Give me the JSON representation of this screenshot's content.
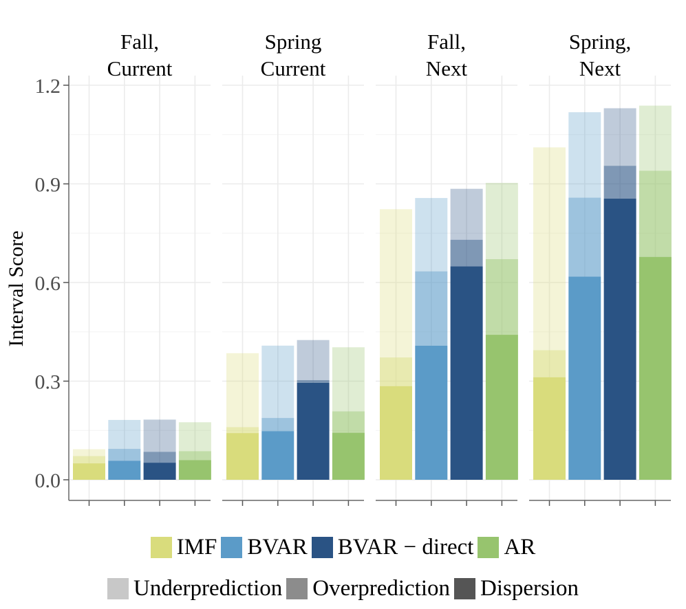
{
  "chart_data": {
    "type": "bar",
    "stacked": true,
    "ylabel": "Interval Score",
    "ylim": [
      0,
      1.2
    ],
    "yticks": [
      "0.0",
      "0.3",
      "0.6",
      "0.9",
      "1.2"
    ],
    "ytick_values": [
      0,
      0.3,
      0.6,
      0.9,
      1.2
    ],
    "grid": true,
    "facets": [
      {
        "title_line1": "Fall,",
        "title_line2": "Current"
      },
      {
        "title_line1": "Spring",
        "title_line2": "Current"
      },
      {
        "title_line1": "Fall,",
        "title_line2": "Next"
      },
      {
        "title_line1": "Spring,",
        "title_line2": "Next"
      }
    ],
    "models": [
      {
        "name": "IMF",
        "color": "#d9dc7c"
      },
      {
        "name": "BVAR",
        "color": "#5b9bc8"
      },
      {
        "name": "BVAR − direct",
        "color": "#2a5384"
      },
      {
        "name": "AR",
        "color": "#97c46e"
      }
    ],
    "components": [
      {
        "name": "Underprediction",
        "legend_color": "#c8c8c8",
        "opacity": 0.3
      },
      {
        "name": "Overprediction",
        "legend_color": "#8c8c8c",
        "opacity": 0.6
      },
      {
        "name": "Dispersion",
        "legend_color": "#555555",
        "opacity": 1.0
      }
    ],
    "values": [
      [
        {
          "dispersion": 0.05,
          "overprediction": 0.022,
          "underprediction": 0.021
        },
        {
          "dispersion": 0.058,
          "overprediction": 0.036,
          "underprediction": 0.088
        },
        {
          "dispersion": 0.052,
          "overprediction": 0.033,
          "underprediction": 0.098
        },
        {
          "dispersion": 0.06,
          "overprediction": 0.027,
          "underprediction": 0.088
        }
      ],
      [
        {
          "dispersion": 0.142,
          "overprediction": 0.018,
          "underprediction": 0.225
        },
        {
          "dispersion": 0.148,
          "overprediction": 0.04,
          "underprediction": 0.22
        },
        {
          "dispersion": 0.295,
          "overprediction": 0.008,
          "underprediction": 0.122
        },
        {
          "dispersion": 0.143,
          "overprediction": 0.065,
          "underprediction": 0.195
        }
      ],
      [
        {
          "dispersion": 0.285,
          "overprediction": 0.087,
          "underprediction": 0.451
        },
        {
          "dispersion": 0.408,
          "overprediction": 0.226,
          "underprediction": 0.223
        },
        {
          "dispersion": 0.649,
          "overprediction": 0.081,
          "underprediction": 0.155
        },
        {
          "dispersion": 0.441,
          "overprediction": 0.23,
          "underprediction": 0.232
        }
      ],
      [
        {
          "dispersion": 0.312,
          "overprediction": 0.082,
          "underprediction": 0.617
        },
        {
          "dispersion": 0.618,
          "overprediction": 0.24,
          "underprediction": 0.26
        },
        {
          "dispersion": 0.855,
          "overprediction": 0.1,
          "underprediction": 0.175
        },
        {
          "dispersion": 0.678,
          "overprediction": 0.262,
          "underprediction": 0.198
        }
      ]
    ]
  }
}
